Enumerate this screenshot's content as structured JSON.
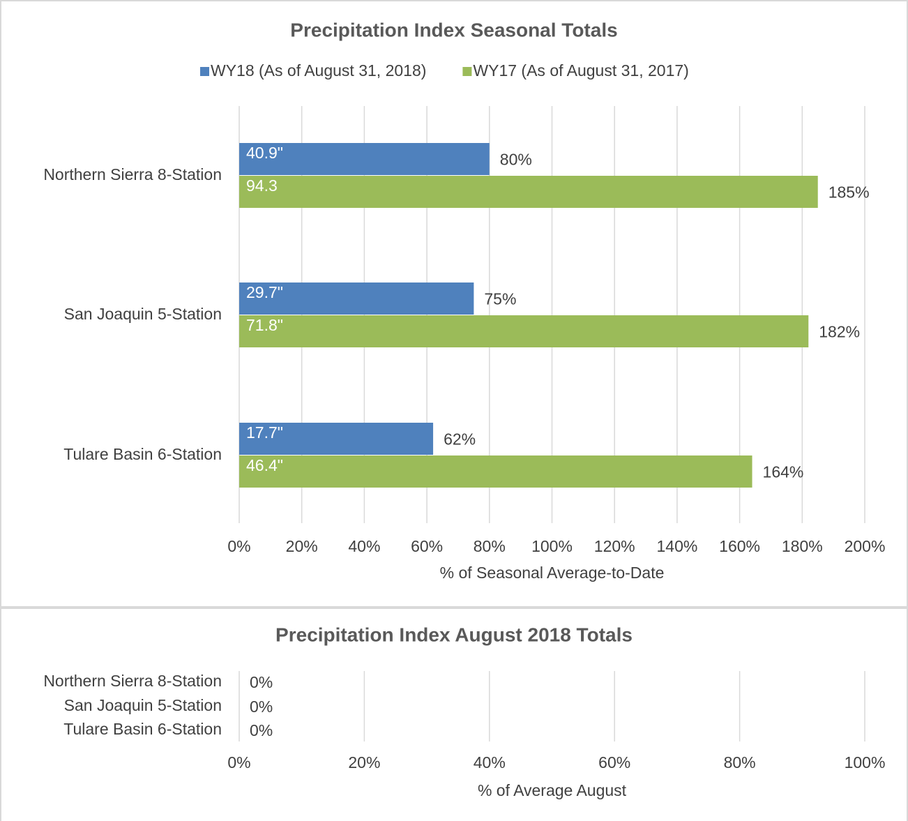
{
  "chart_data": [
    {
      "type": "hbar",
      "title": "Precipitation Index Seasonal Totals",
      "x_label": "% of Seasonal Average-to-Date",
      "categories": [
        "Northern Sierra 8-Station",
        "San Joaquin 5-Station",
        "Tulare Basin 6-Station"
      ],
      "series": [
        {
          "name": "WY18 (As of August 31, 2018)",
          "color": "#4f81bd",
          "values": [
            80,
            75,
            62
          ],
          "value_labels": [
            "80%",
            "75%",
            "62%"
          ],
          "bar_labels": [
            "40.9\"",
            "29.7\"",
            "17.7\""
          ]
        },
        {
          "name": "WY17  (As of August 31, 2017)",
          "color": "#9bbb59",
          "values": [
            185,
            182,
            164
          ],
          "value_labels": [
            "185%",
            "182%",
            "164%"
          ],
          "bar_labels": [
            "94.3",
            "71.8\"",
            "46.4\""
          ]
        }
      ],
      "xlim": [
        0,
        200
      ],
      "xticks": [
        {
          "value": 0,
          "label": "0%"
        },
        {
          "value": 20,
          "label": "20%"
        },
        {
          "value": 40,
          "label": "40%"
        },
        {
          "value": 60,
          "label": "60%"
        },
        {
          "value": 80,
          "label": "80%"
        },
        {
          "value": 100,
          "label": "100%"
        },
        {
          "value": 120,
          "label": "120%"
        },
        {
          "value": 140,
          "label": "140%"
        },
        {
          "value": 160,
          "label": "160%"
        },
        {
          "value": 180,
          "label": "180%"
        },
        {
          "value": 200,
          "label": "200%"
        }
      ],
      "grid": true,
      "legend": "top"
    },
    {
      "type": "hbar",
      "title": "Precipitation Index August 2018 Totals",
      "x_label": "% of Average August",
      "categories": [
        "Northern Sierra 8-Station",
        "San Joaquin 5-Station",
        "Tulare Basin 6-Station"
      ],
      "series": [
        {
          "color": "#4f81bd",
          "values": [
            0,
            0,
            0
          ],
          "value_labels": [
            "0%",
            "0%",
            "0%"
          ]
        }
      ],
      "xlim": [
        0,
        100
      ],
      "xticks": [
        {
          "value": 0,
          "label": "0%"
        },
        {
          "value": 20,
          "label": "20%"
        },
        {
          "value": 40,
          "label": "40%"
        },
        {
          "value": 60,
          "label": "60%"
        },
        {
          "value": 80,
          "label": "80%"
        },
        {
          "value": 100,
          "label": "100%"
        }
      ],
      "grid": true
    }
  ]
}
